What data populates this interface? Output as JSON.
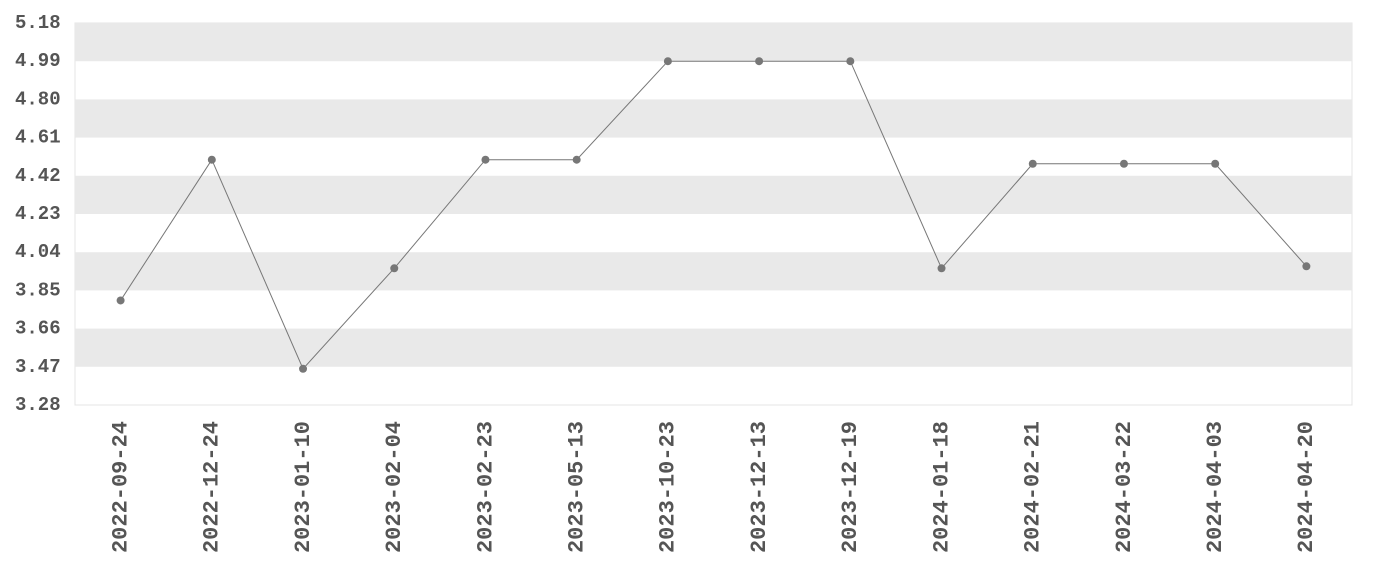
{
  "chart_data": {
    "type": "line",
    "categories": [
      "2022-09-24",
      "2022-12-24",
      "2023-01-10",
      "2023-02-04",
      "2023-02-23",
      "2023-05-13",
      "2023-10-23",
      "2023-12-13",
      "2023-12-19",
      "2024-01-18",
      "2024-02-21",
      "2024-03-22",
      "2024-04-03",
      "2024-04-20"
    ],
    "values": [
      3.8,
      4.5,
      3.46,
      3.96,
      4.5,
      4.5,
      4.99,
      4.99,
      4.99,
      3.96,
      4.48,
      4.48,
      4.48,
      3.97
    ],
    "color": "#777777",
    "ylim": [
      3.28,
      5.18
    ],
    "yticks": [
      3.28,
      3.47,
      3.66,
      3.85,
      4.04,
      4.23,
      4.42,
      4.61,
      {
        "value": 4.8,
        "label": "4.80"
      },
      4.99,
      5.18
    ],
    "grid": true
  }
}
